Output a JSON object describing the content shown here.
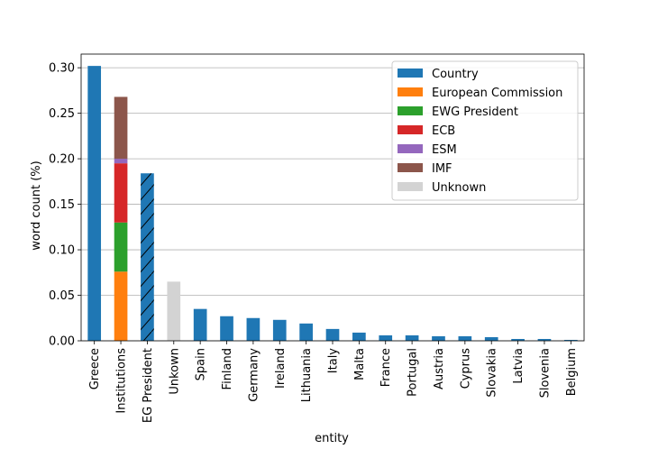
{
  "chart_data": {
    "type": "bar",
    "stacked": true,
    "xlabel": "entity",
    "ylabel": "word count (%)",
    "ylim": [
      0,
      0.315
    ],
    "yticks": [
      "0.00",
      "0.05",
      "0.10",
      "0.15",
      "0.20",
      "0.25",
      "0.30"
    ],
    "grid": "horizontal",
    "legend_position": "top-right",
    "categories": [
      "Greece",
      "Institutions",
      "EG President",
      "Unkown",
      "Spain",
      "Finland",
      "Germany",
      "Ireland",
      "Lithuania",
      "Italy",
      "Malta",
      "France",
      "Portugal",
      "Austria",
      "Cyprus",
      "Slovakia",
      "Latvia",
      "Slovenia",
      "Belgium"
    ],
    "series": [
      {
        "name": "Country",
        "color": "#1f77b4",
        "values": [
          0.302,
          0,
          0.184,
          0,
          0.035,
          0.027,
          0.025,
          0.023,
          0.019,
          0.013,
          0.009,
          0.006,
          0.006,
          0.005,
          0.005,
          0.004,
          0.002,
          0.002,
          0.001
        ]
      },
      {
        "name": "European Commission",
        "color": "#ff7f0e",
        "values": [
          0,
          0.076,
          0,
          0,
          0,
          0,
          0,
          0,
          0,
          0,
          0,
          0,
          0,
          0,
          0,
          0,
          0,
          0,
          0
        ]
      },
      {
        "name": "EWG President",
        "color": "#2ca02c",
        "values": [
          0,
          0.054,
          0,
          0,
          0,
          0,
          0,
          0,
          0,
          0,
          0,
          0,
          0,
          0,
          0,
          0,
          0,
          0,
          0
        ]
      },
      {
        "name": "ECB",
        "color": "#d62728",
        "values": [
          0,
          0.065,
          0,
          0,
          0,
          0,
          0,
          0,
          0,
          0,
          0,
          0,
          0,
          0,
          0,
          0,
          0,
          0,
          0
        ]
      },
      {
        "name": "ESM",
        "color": "#9467bd",
        "values": [
          0,
          0.005,
          0,
          0,
          0,
          0,
          0,
          0,
          0,
          0,
          0,
          0,
          0,
          0,
          0,
          0,
          0,
          0,
          0
        ]
      },
      {
        "name": "IMF",
        "color": "#8c564b",
        "values": [
          0,
          0.068,
          0,
          0,
          0,
          0,
          0,
          0,
          0,
          0,
          0,
          0,
          0,
          0,
          0,
          0,
          0,
          0,
          0
        ]
      },
      {
        "name": "Unknown",
        "color": "#d3d3d3",
        "values": [
          0,
          0,
          0,
          0.065,
          0,
          0,
          0,
          0,
          0,
          0,
          0,
          0,
          0,
          0,
          0,
          0,
          0,
          0,
          0
        ]
      }
    ],
    "hatched_categories": [
      "EG President"
    ]
  }
}
